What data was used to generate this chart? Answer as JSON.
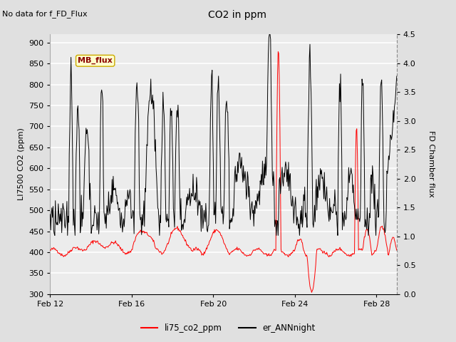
{
  "title": "CO2 in ppm",
  "top_left_text": "No data for f_FD_Flux",
  "ylabel_left": "LI7500 CO2 (ppm)",
  "ylabel_right": "FD Chamber flux",
  "ylim_left": [
    300,
    920
  ],
  "ylim_right": [
    0.0,
    4.5
  ],
  "yticks_left": [
    300,
    350,
    400,
    450,
    500,
    550,
    600,
    650,
    700,
    750,
    800,
    850,
    900
  ],
  "yticks_right": [
    0.0,
    0.5,
    1.0,
    1.5,
    2.0,
    2.5,
    3.0,
    3.5,
    4.0,
    4.5
  ],
  "xtick_labels": [
    "Feb 12",
    "Feb 16",
    "Feb 20",
    "Feb 24",
    "Feb 28"
  ],
  "xtick_positions": [
    0,
    4,
    8,
    12,
    16
  ],
  "legend_entries": [
    "li75_co2_ppm",
    "er_ANNnight"
  ],
  "legend_colors": [
    "red",
    "black"
  ],
  "MB_flux_label": "MB_flux",
  "background_color": "#e0e0e0",
  "plot_bg_color": "#ececec",
  "grid_color": "white",
  "xlim": [
    0,
    17
  ]
}
